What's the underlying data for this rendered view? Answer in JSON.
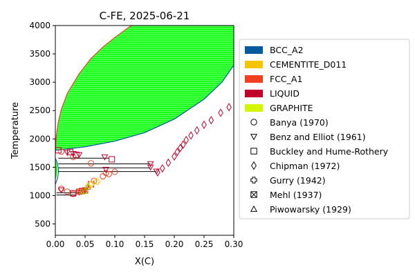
{
  "chart_data": {
    "type": "scatter",
    "title": "C-FE, 2025-06-21",
    "xlabel": "X(C)",
    "ylabel": "Temperature",
    "xlim": [
      0.0,
      0.3
    ],
    "ylim": [
      300,
      4000
    ],
    "xticks": [
      0.0,
      0.05,
      0.1,
      0.15,
      0.2,
      0.25,
      0.3
    ],
    "xtick_labels": [
      "0.00",
      "0.05",
      "0.10",
      "0.15",
      "0.20",
      "0.25",
      "0.30"
    ],
    "yticks": [
      500,
      1000,
      1500,
      2000,
      2500,
      3000,
      3500,
      4000
    ],
    "ytick_labels": [
      "500",
      "1000",
      "1500",
      "2000",
      "2500",
      "3000",
      "3500",
      "4000"
    ],
    "grid": false,
    "legend_placement": "outside-right",
    "phases": [
      {
        "name": "BCC_A2",
        "color": "#005a9c"
      },
      {
        "name": "CEMENTITE_D011",
        "color": "#f2c500"
      },
      {
        "name": "FCC_A1",
        "color": "#f04020"
      },
      {
        "name": "LIQUID",
        "color": "#c0002a"
      },
      {
        "name": "GRAPHITE",
        "color": "#d4f500"
      }
    ],
    "regions": [
      {
        "phases": "LIQUID+GRAPHITE",
        "fill": "#1aff1a",
        "liquidus": [
          [
            0.0,
            1800
          ],
          [
            0.002,
            2080
          ],
          [
            0.005,
            2300
          ],
          [
            0.01,
            2520
          ],
          [
            0.02,
            2800
          ],
          [
            0.04,
            3150
          ],
          [
            0.06,
            3420
          ],
          [
            0.08,
            3620
          ],
          [
            0.1,
            3790
          ],
          [
            0.125,
            3980
          ],
          [
            0.13,
            4000
          ]
        ],
        "graphite_side": [
          [
            0.0,
            1800
          ],
          [
            0.05,
            1860
          ],
          [
            0.1,
            1960
          ],
          [
            0.15,
            2110
          ],
          [
            0.2,
            2350
          ],
          [
            0.25,
            2700
          ],
          [
            0.28,
            3000
          ],
          [
            0.3,
            3300
          ]
        ]
      }
    ],
    "tie_lines": [
      {
        "x": [
          0.005,
          0.16
        ],
        "y": [
          1560,
          1560
        ]
      },
      {
        "x": [
          0.005,
          0.16
        ],
        "y": [
          1490,
          1490
        ]
      },
      {
        "x": [
          0.005,
          0.17
        ],
        "y": [
          1425,
          1425
        ]
      },
      {
        "x": [
          0.005,
          0.09
        ],
        "y": [
          1660,
          1660
        ]
      },
      {
        "x": [
          0.002,
          0.04
        ],
        "y": [
          1050,
          1050
        ]
      },
      {
        "x": [
          0.002,
          0.035
        ],
        "y": [
          1010,
          1010
        ]
      }
    ],
    "series": [
      {
        "name": "Banya (1970)",
        "marker": "circle",
        "points": [
          [
            0.01,
            1775
          ],
          [
            0.03,
            1680
          ],
          [
            0.06,
            1570
          ],
          [
            0.085,
            1400
          ],
          [
            0.09,
            1380
          ],
          [
            0.1,
            1420
          ],
          [
            0.01,
            1120
          ],
          [
            0.02,
            1070
          ],
          [
            0.03,
            1030
          ],
          [
            0.065,
            1260
          ],
          [
            0.08,
            1340
          ]
        ]
      },
      {
        "name": "Benz and Elliot (1961)",
        "marker": "triangle-down",
        "points": [
          [
            0.02,
            1760
          ],
          [
            0.03,
            1740
          ],
          [
            0.04,
            1720
          ],
          [
            0.083,
            1680
          ],
          [
            0.085,
            1460
          ],
          [
            0.16,
            1560
          ],
          [
            0.16,
            1500
          ],
          [
            0.17,
            1430
          ],
          [
            0.01,
            1100
          ],
          [
            0.04,
            1060
          ],
          [
            0.05,
            1100
          ]
        ]
      },
      {
        "name": "Buckley and Hume-Rothery",
        "marker": "square",
        "points": [
          [
            0.005,
            1800
          ],
          [
            0.025,
            1770
          ],
          [
            0.035,
            1720
          ],
          [
            0.095,
            1640
          ],
          [
            0.03,
            1040
          ],
          [
            0.045,
            1080
          ],
          [
            0.06,
            1200
          ]
        ]
      },
      {
        "name": "Chipman (1972)",
        "marker": "diamond",
        "points": [
          [
            0.172,
            1410
          ],
          [
            0.18,
            1480
          ],
          [
            0.19,
            1580
          ],
          [
            0.2,
            1690
          ],
          [
            0.205,
            1770
          ],
          [
            0.21,
            1840
          ],
          [
            0.215,
            1900
          ],
          [
            0.22,
            1980
          ],
          [
            0.228,
            2060
          ],
          [
            0.238,
            2150
          ],
          [
            0.25,
            2250
          ],
          [
            0.262,
            2330
          ],
          [
            0.278,
            2460
          ],
          [
            0.292,
            2560
          ]
        ]
      },
      {
        "name": "Gurry (1942)",
        "marker": "plus",
        "points": [
          [
            0.055,
            1160
          ],
          [
            0.06,
            1200
          ],
          [
            0.07,
            1250
          ]
        ]
      },
      {
        "name": "Mehl (1937)",
        "marker": "x-box",
        "points": [
          [
            0.04,
            1070
          ],
          [
            0.05,
            1090
          ]
        ]
      },
      {
        "name": "Piwowarsky (1929)",
        "marker": "triangle-up",
        "points": [
          [
            0.045,
            1070
          ],
          [
            0.05,
            1080
          ],
          [
            0.055,
            1150
          ]
        ]
      }
    ]
  }
}
